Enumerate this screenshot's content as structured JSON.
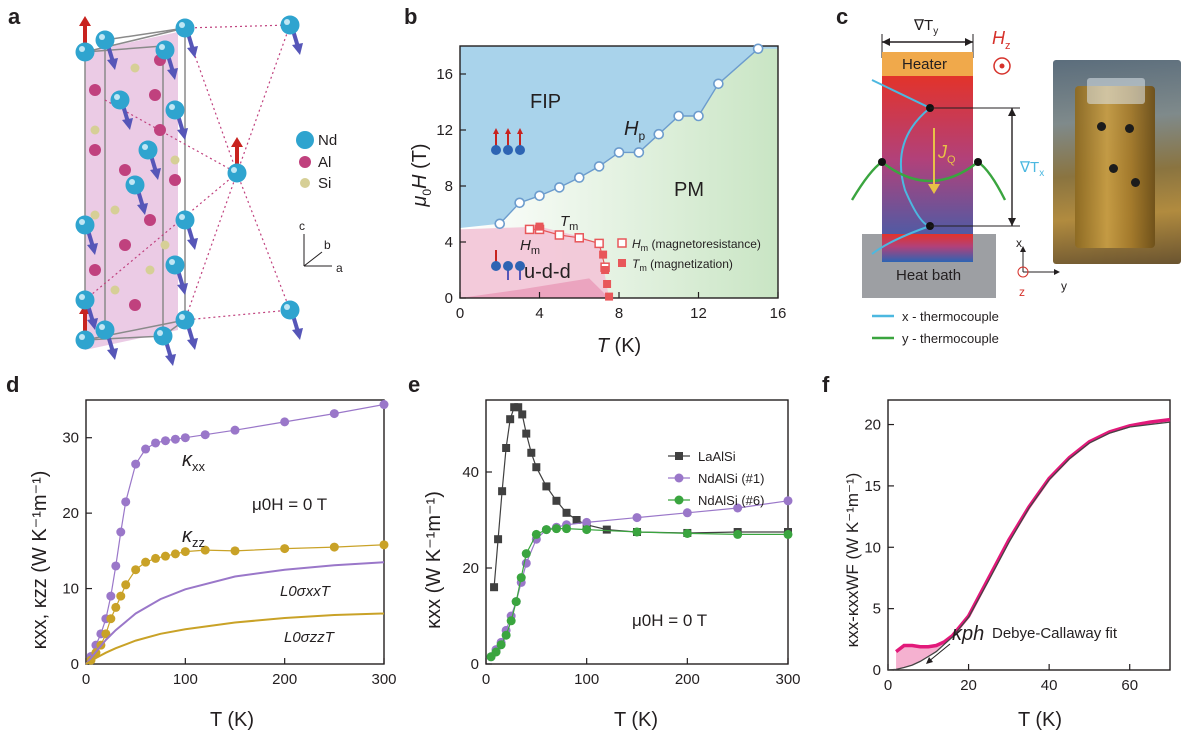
{
  "panels": {
    "a": {
      "label": "a",
      "legend": [
        "Nd",
        "Al",
        "Si"
      ],
      "colors": {
        "Nd": "#2fa4cf",
        "Al": "#c0417e",
        "Si": "#d6cf96",
        "spin_red": "#c8231f",
        "spin_blue": "#5656b8",
        "plane": "#e7c2e0"
      },
      "axes_labels": {
        "c": "c",
        "b": "b",
        "a": "a"
      }
    },
    "b": {
      "label": "b",
      "region_labels": {
        "fip": "FIP",
        "pm": "PM",
        "udd": "u-d-d"
      },
      "curve_labels": {
        "hp": "H",
        "hp_sub": "p",
        "hm": "H",
        "hm_sub": "m",
        "tm": "T",
        "tm_sub": "m"
      },
      "legend": [
        {
          "sym": "H",
          "sub": "m",
          "text": " (magnetoresistance)"
        },
        {
          "sym": "T",
          "sub": "m",
          "text": " (magnetization)"
        }
      ],
      "xlabel": {
        "sym": "T",
        "unit": " (K)"
      },
      "ylabel": {
        "pre": "μ",
        "sub": "0",
        "sym": "H",
        "unit": " (T)"
      },
      "colors": {
        "fip": "#a9d3eb",
        "pm": "#d6ebd3",
        "udd": "#f2c7d8",
        "marker": "#e8575a",
        "line": "#6c9ccd"
      }
    },
    "c": {
      "label": "c",
      "texts": {
        "grad_y": "∇T",
        "grad_y_sub": "y",
        "hz": "H",
        "hz_sub": "z",
        "heater": "Heater",
        "jq": "J",
        "jq_sub": "Q",
        "grad_x": "∇T",
        "grad_x_sub": "x",
        "heat_bath": "Heat bath",
        "x": "x",
        "y": "y",
        "z": "z"
      },
      "legend": [
        "x - thermocouple",
        "y - thermocouple"
      ],
      "colors": {
        "heater": "#f0a94b",
        "bath": "#9d9fa3",
        "x_tc": "#4cb8e0",
        "y_tc": "#3aa53f",
        "arrow": "#e8c147"
      }
    },
    "d": {
      "label": "d",
      "annot": {
        "kxx": "κ",
        "kxx_sub": "xx",
        "kzz": "κ",
        "kzz_sub": "zz",
        "field": "μ0H = 0 T",
        "l0xx": "L0σxxT",
        "l0zz": "L0σzzT"
      },
      "ylabel": "κxx, κzz (W K⁻¹m⁻¹)",
      "xlabel": "T (K)"
    },
    "e": {
      "label": "e",
      "annot": {
        "field": "μ0H = 0 T"
      },
      "ylabel": "κxx (W K⁻¹m⁻¹)",
      "xlabel": "T (K)"
    },
    "f": {
      "label": "f",
      "annot": {
        "kph": "κph",
        "fit": "Debye-Callaway fit"
      },
      "ylabel": "κxx-κxxWF (W K⁻¹m⁻¹)",
      "xlabel": "T (K)"
    }
  },
  "chart_data": [
    {
      "panel": "b",
      "type": "scatter",
      "xlim": [
        0,
        16
      ],
      "ylim": [
        0,
        18
      ],
      "xticks": [
        0,
        4,
        8,
        12,
        16
      ],
      "yticks": [
        0,
        4,
        8,
        12,
        16
      ],
      "series": [
        {
          "name": "Hp",
          "marker": "open-circle",
          "x": [
            2,
            3,
            4,
            5,
            6,
            7,
            8,
            9,
            10,
            11,
            12,
            13,
            15
          ],
          "y": [
            5.3,
            6.8,
            7.3,
            7.9,
            8.6,
            9.4,
            10.4,
            10.4,
            11.7,
            13.0,
            13.0,
            15.3,
            17.8
          ]
        },
        {
          "name": "Hm (magnetoresistance)",
          "marker": "open-square",
          "x": [
            3.5,
            4,
            5,
            6,
            7,
            7.3
          ],
          "y": [
            4.9,
            4.9,
            4.5,
            4.3,
            3.9,
            2.2
          ]
        },
        {
          "name": "Tm (magnetization)",
          "marker": "filled-square",
          "x": [
            4,
            7.2,
            7.3,
            7.4,
            7.5
          ],
          "y": [
            5.1,
            3.1,
            2.0,
            1.0,
            0.1
          ]
        }
      ]
    },
    {
      "panel": "d",
      "type": "line",
      "xlim": [
        0,
        300
      ],
      "ylim": [
        0,
        35
      ],
      "xticks": [
        0,
        100,
        200,
        300
      ],
      "yticks": [
        0,
        10,
        20,
        30
      ],
      "series": [
        {
          "name": "κxx",
          "marker": "filled-circle",
          "color": "#9a77c9",
          "x": [
            5,
            10,
            15,
            20,
            25,
            30,
            35,
            40,
            50,
            60,
            70,
            80,
            90,
            100,
            120,
            150,
            200,
            250,
            300
          ],
          "y": [
            1,
            2.5,
            4,
            6,
            9,
            13,
            17.5,
            21.5,
            26.5,
            28.5,
            29.3,
            29.6,
            29.8,
            30.0,
            30.4,
            31.0,
            32.1,
            33.2,
            34.4
          ]
        },
        {
          "name": "κzz",
          "marker": "filled-circle",
          "color": "#c9a227",
          "x": [
            5,
            10,
            15,
            20,
            25,
            30,
            35,
            40,
            50,
            60,
            70,
            80,
            90,
            100,
            120,
            150,
            200,
            250,
            300
          ],
          "y": [
            0.5,
            1.5,
            2.5,
            4,
            6,
            7.5,
            9,
            10.5,
            12.5,
            13.5,
            14.0,
            14.3,
            14.6,
            14.9,
            15.1,
            15.0,
            15.3,
            15.5,
            15.8
          ]
        },
        {
          "name": "L0σxxT",
          "marker": "none",
          "color": "#9a77c9",
          "x": [
            0,
            10,
            20,
            30,
            50,
            75,
            100,
            150,
            200,
            250,
            300
          ],
          "y": [
            0,
            1.6,
            3.2,
            4.5,
            6.7,
            8.6,
            9.9,
            11.6,
            12.5,
            13.1,
            13.5
          ]
        },
        {
          "name": "L0σzzT",
          "marker": "none",
          "color": "#c9a227",
          "x": [
            0,
            10,
            20,
            30,
            50,
            75,
            100,
            150,
            200,
            250,
            300
          ],
          "y": [
            0,
            0.8,
            1.5,
            2.1,
            3.1,
            4.0,
            4.6,
            5.5,
            6.1,
            6.5,
            6.7
          ]
        }
      ]
    },
    {
      "panel": "e",
      "type": "line",
      "xlim": [
        0,
        300
      ],
      "ylim": [
        0,
        55
      ],
      "xticks": [
        0,
        100,
        200,
        300
      ],
      "yticks": [
        0,
        20,
        40
      ],
      "series": [
        {
          "name": "LaAlSi",
          "marker": "filled-square",
          "color": "#404040",
          "x": [
            8,
            12,
            16,
            20,
            24,
            28,
            32,
            36,
            40,
            45,
            50,
            60,
            70,
            80,
            90,
            100,
            120,
            150,
            200,
            250,
            300
          ],
          "y": [
            16,
            26,
            36,
            45,
            51,
            53.5,
            53.5,
            52,
            48,
            44,
            41,
            37,
            34,
            31.5,
            30,
            29,
            28,
            27.5,
            27.3,
            27.5,
            27.5
          ]
        },
        {
          "name": "NdAlSi (#1)",
          "marker": "filled-circle",
          "color": "#9a77c9",
          "x": [
            5,
            10,
            15,
            20,
            25,
            30,
            35,
            40,
            50,
            60,
            70,
            80,
            100,
            150,
            200,
            250,
            300
          ],
          "y": [
            1.5,
            3,
            4.5,
            7,
            10,
            13,
            17,
            21,
            26,
            28,
            28.5,
            29,
            29.5,
            30.5,
            31.5,
            32.5,
            34.0
          ]
        },
        {
          "name": "NdAlSi (#6)",
          "marker": "filled-circle",
          "color": "#3aa53f",
          "x": [
            5,
            10,
            15,
            20,
            25,
            30,
            35,
            40,
            50,
            60,
            70,
            80,
            100,
            150,
            200,
            250,
            300
          ],
          "y": [
            1.5,
            2.5,
            4,
            6,
            9,
            13,
            18,
            23,
            27,
            28,
            28.2,
            28.2,
            28,
            27.5,
            27.2,
            27.0,
            27.0
          ]
        }
      ]
    },
    {
      "panel": "f",
      "type": "area",
      "xlim": [
        0,
        70
      ],
      "ylim": [
        0,
        22
      ],
      "xticks": [
        0,
        20,
        40,
        60
      ],
      "yticks": [
        0,
        5,
        10,
        15,
        20
      ],
      "series": [
        {
          "name": "κxx-κxxWF",
          "color": "#e2197a",
          "x": [
            2,
            4,
            6,
            8,
            10,
            12,
            14,
            16,
            20,
            25,
            30,
            35,
            40,
            45,
            50,
            55,
            60,
            65,
            70
          ],
          "y": [
            1.5,
            2.0,
            2.0,
            1.9,
            1.9,
            2.0,
            2.3,
            2.8,
            4.4,
            7.5,
            10.6,
            13.3,
            15.6,
            17.3,
            18.6,
            19.4,
            19.9,
            20.2,
            20.4
          ]
        },
        {
          "name": "Debye-Callaway fit",
          "color": "#444444",
          "x": [
            0,
            2,
            4,
            6,
            8,
            10,
            12,
            14,
            16,
            20,
            25,
            30,
            35,
            40,
            45,
            50,
            55,
            60,
            65,
            70
          ],
          "y": [
            0,
            0.05,
            0.2,
            0.4,
            0.7,
            1.1,
            1.5,
            2.1,
            2.7,
            4.3,
            7.3,
            10.4,
            13.2,
            15.5,
            17.2,
            18.5,
            19.3,
            19.8,
            20.0,
            20.2
          ]
        }
      ]
    }
  ]
}
